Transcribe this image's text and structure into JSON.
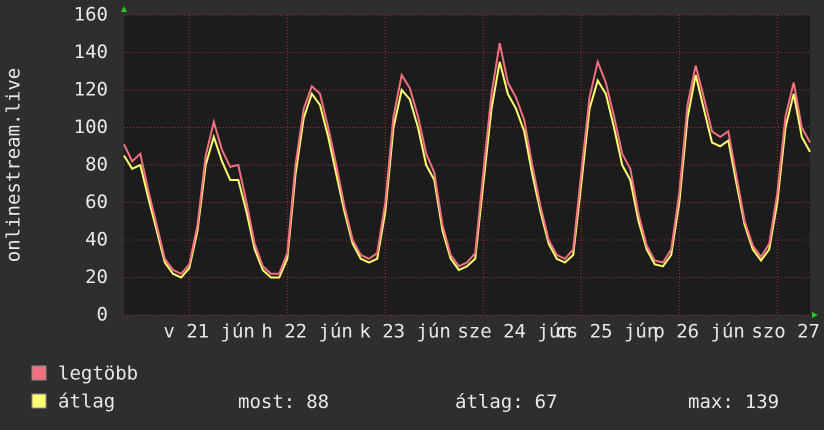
{
  "chart_data": {
    "type": "line",
    "y_label": "onlinestream.live",
    "ylim": [
      0,
      160
    ],
    "yticks": [
      0,
      20,
      40,
      60,
      80,
      100,
      120,
      140,
      160
    ],
    "xlim": [
      0,
      84
    ],
    "xticks": [
      {
        "value": 8,
        "label": "v 21 jún"
      },
      {
        "value": 20,
        "label": "h 22 jún"
      },
      {
        "value": 32,
        "label": "k 23 jún"
      },
      {
        "value": 44,
        "label": "sze 24 jún"
      },
      {
        "value": 56,
        "label": "cs 25 jún"
      },
      {
        "value": 68,
        "label": "p 26 jún"
      },
      {
        "value": 80,
        "label": "szo 27"
      }
    ],
    "grid": true,
    "series": [
      {
        "name": "legtöbb",
        "color": "#f07080",
        "values": [
          91,
          82,
          86,
          66,
          48,
          30,
          24,
          22,
          27,
          48,
          85,
          103,
          88,
          79,
          80,
          60,
          38,
          26,
          22,
          22,
          33,
          80,
          110,
          122,
          118,
          100,
          80,
          58,
          40,
          32,
          30,
          33,
          60,
          106,
          128,
          121,
          106,
          86,
          76,
          48,
          32,
          26,
          28,
          33,
          76,
          118,
          145,
          124,
          116,
          104,
          80,
          58,
          40,
          32,
          30,
          35,
          76,
          116,
          135,
          124,
          106,
          86,
          78,
          54,
          37,
          29,
          28,
          35,
          65,
          112,
          133,
          116,
          98,
          95,
          98,
          74,
          50,
          37,
          31,
          38,
          65,
          106,
          124,
          100,
          92
        ]
      },
      {
        "name": "átlag",
        "color": "#ffff70",
        "values": [
          85,
          78,
          80,
          62,
          45,
          28,
          22,
          20,
          25,
          45,
          80,
          95,
          82,
          72,
          72,
          55,
          35,
          24,
          20,
          20,
          30,
          75,
          105,
          118,
          112,
          95,
          75,
          55,
          38,
          30,
          28,
          30,
          55,
          100,
          120,
          115,
          100,
          80,
          72,
          45,
          30,
          24,
          26,
          30,
          70,
          110,
          135,
          118,
          110,
          98,
          75,
          55,
          38,
          30,
          28,
          32,
          70,
          110,
          125,
          118,
          100,
          80,
          72,
          50,
          35,
          27,
          26,
          32,
          60,
          105,
          128,
          110,
          92,
          90,
          93,
          70,
          48,
          35,
          29,
          35,
          60,
          100,
          118,
          95,
          87
        ]
      }
    ],
    "stats": [
      {
        "label": "most:",
        "value": 88
      },
      {
        "label": "átlag:",
        "value": 67
      },
      {
        "label": "max:",
        "value": 139
      }
    ]
  }
}
